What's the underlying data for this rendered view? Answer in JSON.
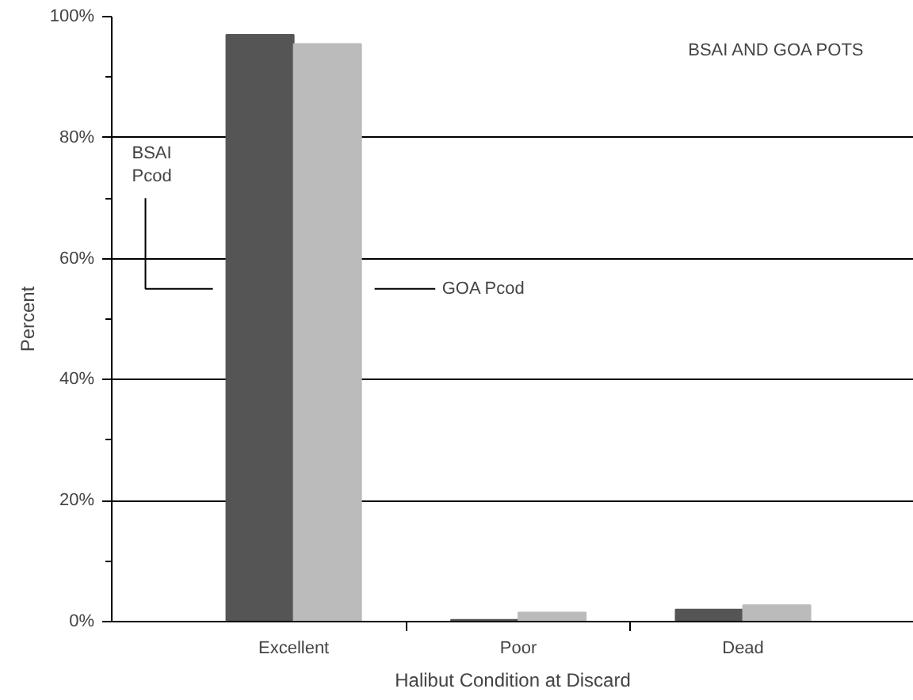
{
  "chart_data": {
    "type": "bar",
    "xlabel": "Halibut Condition at Discard",
    "ylabel": "Percent",
    "categories": [
      "Excellent",
      "Poor",
      "Dead"
    ],
    "series": [
      {
        "name": "BSAI Pcod",
        "color": "#555555",
        "values": [
          97,
          0.3,
          2
        ]
      },
      {
        "name": "GOA Pcod",
        "color": "#bbbbbb",
        "values": [
          95.5,
          1.5,
          2.7
        ]
      }
    ],
    "ylim": [
      0,
      100
    ],
    "yticks": [
      {
        "value": 0,
        "label": "0%"
      },
      {
        "value": 20,
        "label": "20%"
      },
      {
        "value": 40,
        "label": "40%"
      },
      {
        "value": 60,
        "label": "60%"
      },
      {
        "value": 80,
        "label": "80%"
      },
      {
        "value": 100,
        "label": "100%"
      }
    ],
    "grid": "y",
    "annotations": [
      "BSAI AND GOA POTS"
    ]
  }
}
